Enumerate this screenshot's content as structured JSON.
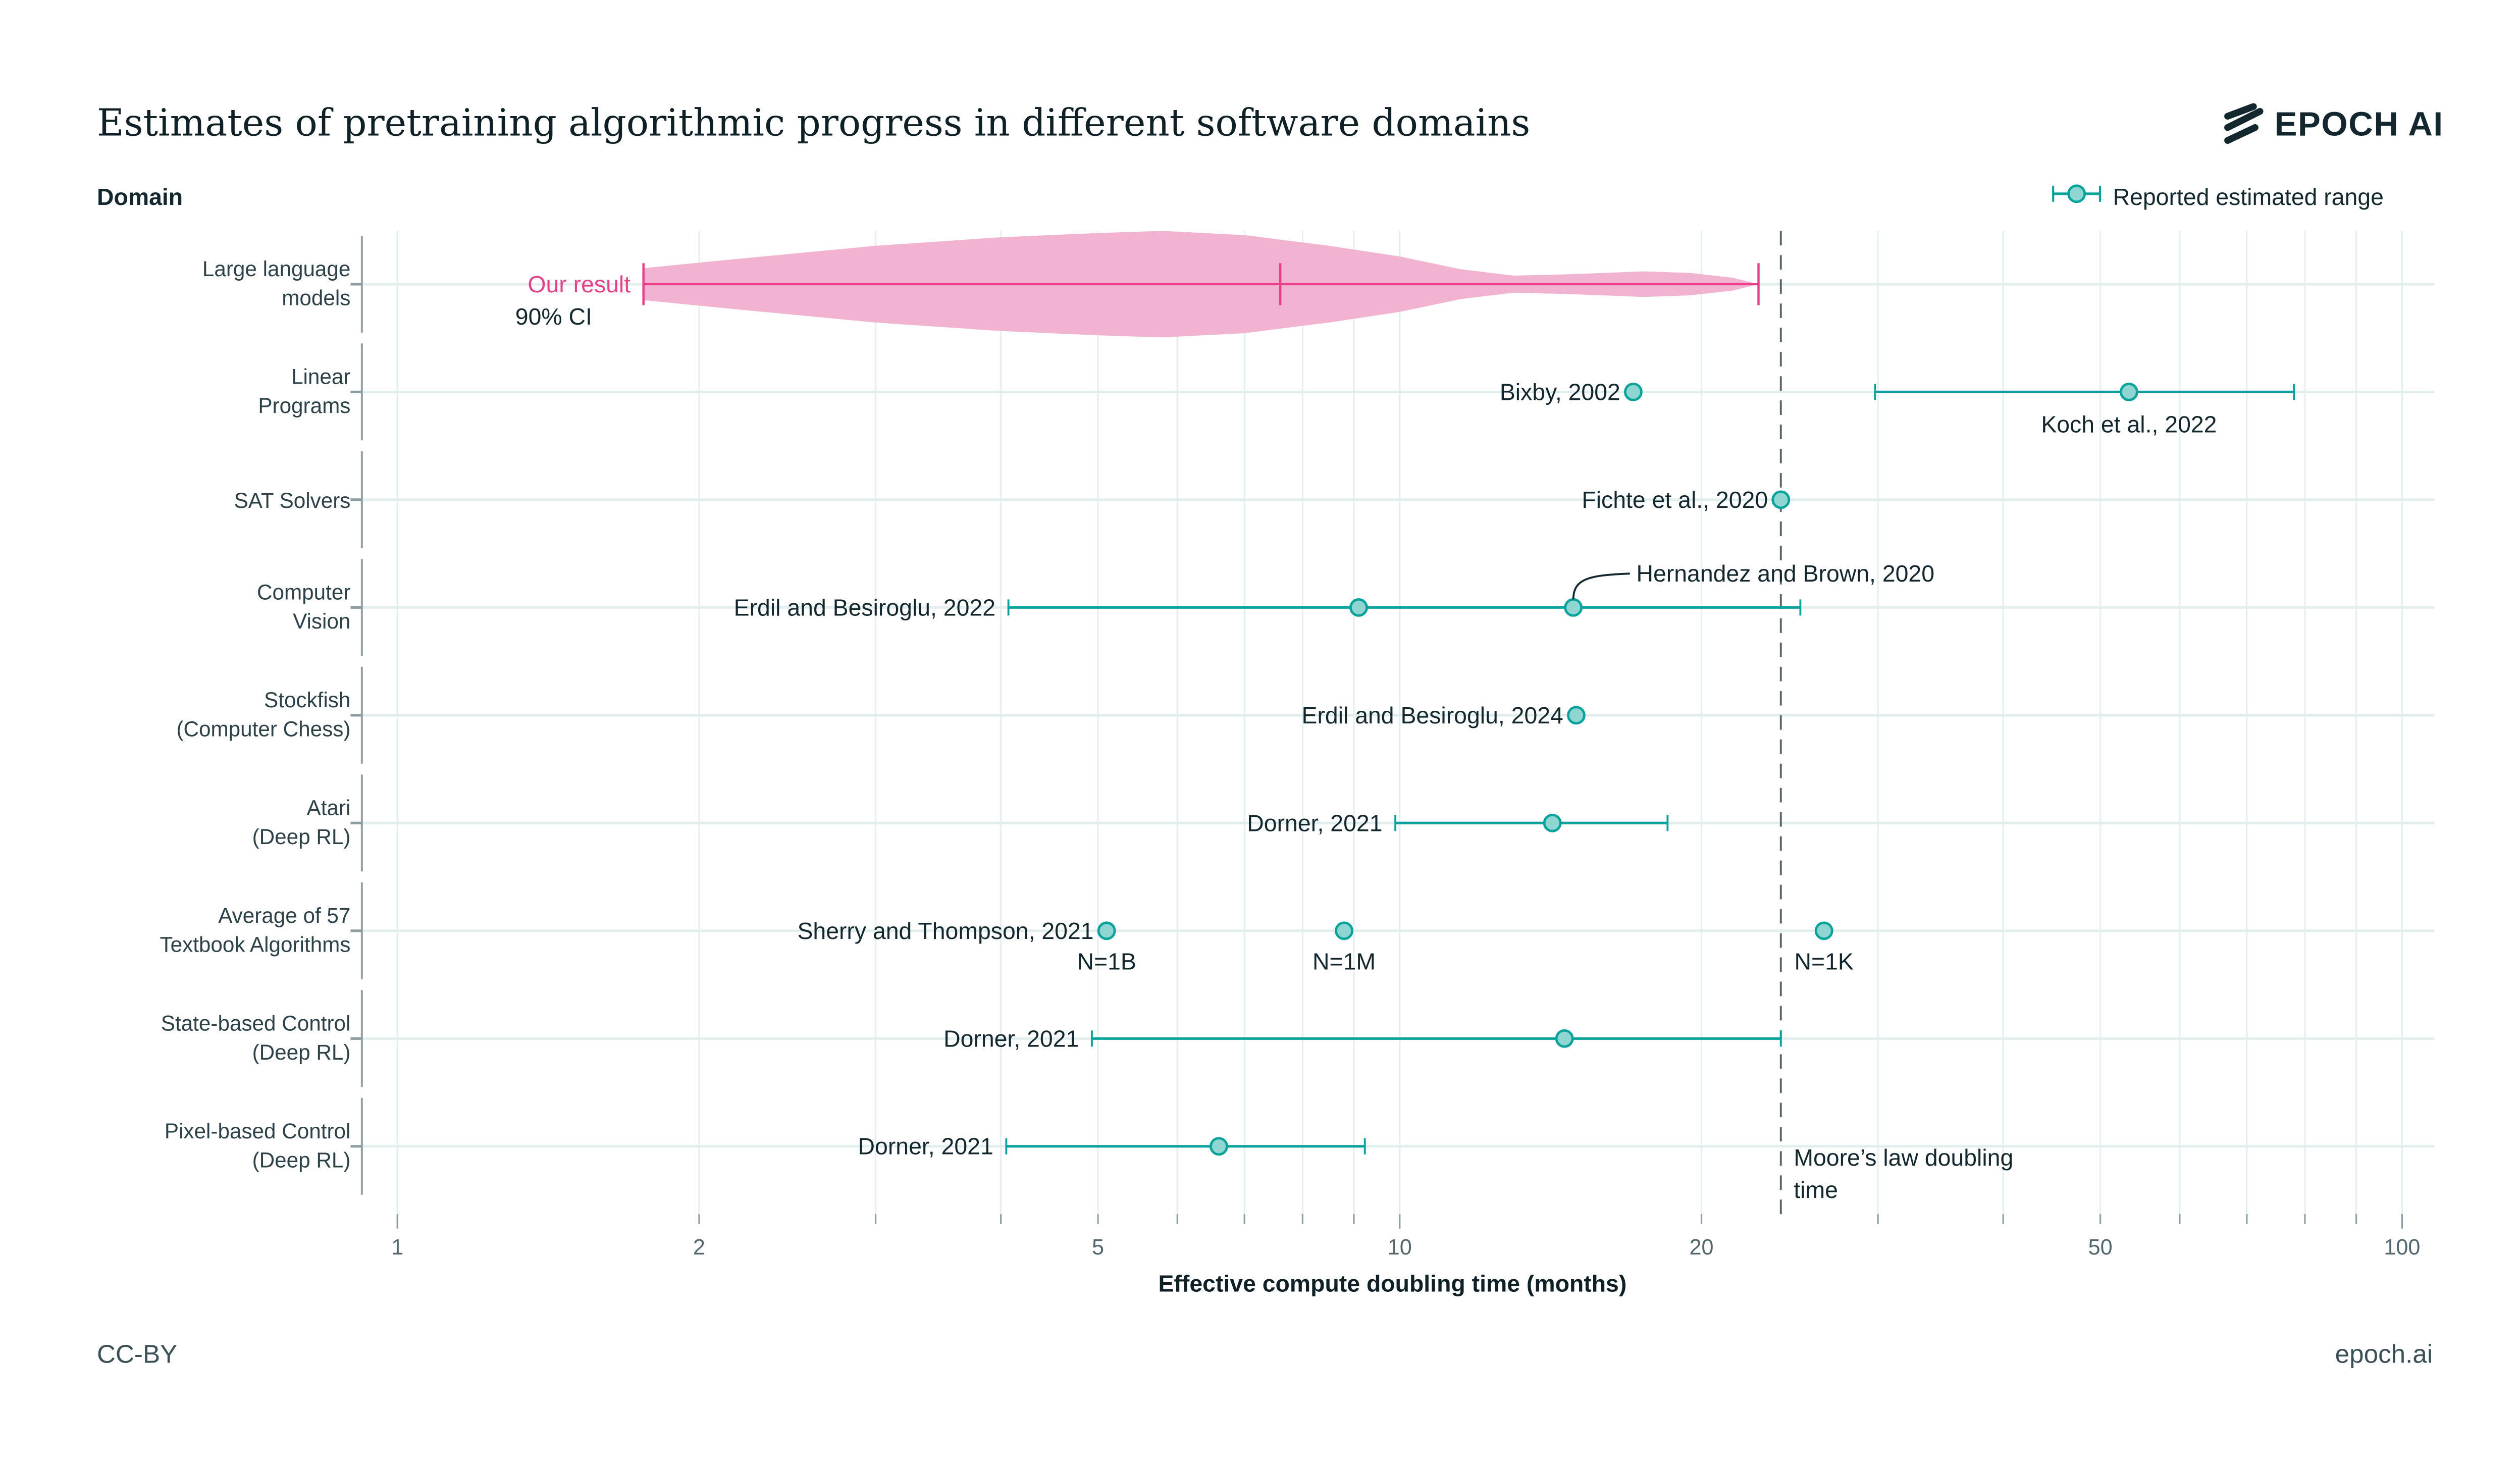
{
  "header": {
    "title": "Estimates of pretraining algorithmic progress in different software domains",
    "brand": "EPOCH AI",
    "y_axis_title": "Domain",
    "legend_label": "Reported estimated range"
  },
  "footer": {
    "license": "CC-BY",
    "site": "epoch.ai"
  },
  "colors": {
    "teal": "#0aa29c",
    "teal_fill": "#8fd6d3",
    "pink": "#e6408a",
    "pink_fill": "#f2b3d0",
    "text": "#13282e",
    "moore_line": "#56656a"
  },
  "chart_data": {
    "type": "scatter",
    "title": "Estimates of pretraining algorithmic progress in different software domains",
    "xlabel": "Effective compute doubling time (months)",
    "ylabel": "Domain",
    "xscale": "log",
    "xlim": [
      1,
      100
    ],
    "xticks": [
      1,
      2,
      5,
      10,
      20,
      50,
      100
    ],
    "xtick_labels": [
      "1",
      "2",
      "5",
      "10",
      "20",
      "50",
      "100"
    ],
    "grid": true,
    "legend": {
      "entries": [
        "Reported estimated range"
      ],
      "placement": "top-right"
    },
    "domains": [
      "Large language models",
      "Linear Programs",
      "SAT Solvers",
      "Computer Vision",
      "Stockfish (Computer Chess)",
      "Atari (Deep RL)",
      "Average of 57 Textbook Algorithms",
      "State-based Control (Deep RL)",
      "Pixel-based Control (Deep RL)"
    ],
    "domain_label_lines": [
      [
        "Large language",
        "models"
      ],
      [
        "Linear",
        "Programs"
      ],
      [
        "SAT Solvers"
      ],
      [
        "Computer",
        "Vision"
      ],
      [
        "Stockfish",
        "(Computer Chess)"
      ],
      [
        "Atari",
        "(Deep RL)"
      ],
      [
        "Average of 57",
        "Textbook Algorithms"
      ],
      [
        "State-based Control",
        "(Deep RL)"
      ],
      [
        "Pixel-based Control",
        "(Deep RL)"
      ]
    ],
    "our_result": {
      "domain": "Large language models",
      "label": "Our result",
      "sublabel": "90% CI",
      "ci_low": 1.76,
      "median": 7.6,
      "ci_high": 22.8,
      "violin_density": [
        [
          1.76,
          0.3
        ],
        [
          2.2,
          0.48
        ],
        [
          3.0,
          0.72
        ],
        [
          4.0,
          0.88
        ],
        [
          5.0,
          0.96
        ],
        [
          5.8,
          1.0
        ],
        [
          7.0,
          0.92
        ],
        [
          8.5,
          0.72
        ],
        [
          10.0,
          0.52
        ],
        [
          11.5,
          0.28
        ],
        [
          13.0,
          0.16
        ],
        [
          15.0,
          0.19
        ],
        [
          17.5,
          0.24
        ],
        [
          19.5,
          0.21
        ],
        [
          21.5,
          0.12
        ],
        [
          22.8,
          0.0
        ]
      ]
    },
    "estimates": [
      {
        "domain": "Linear Programs",
        "label": "Bixby, 2002",
        "value": 17.1,
        "label_pos": "left"
      },
      {
        "domain": "Linear Programs",
        "label": "Koch et al., 2022",
        "value": 53.4,
        "low": 29.8,
        "high": 78,
        "label_pos": "below"
      },
      {
        "domain": "SAT Solvers",
        "label": "Fichte et al., 2020",
        "value": 24.0,
        "label_pos": "left"
      },
      {
        "domain": "Computer Vision",
        "label": "Erdil and Besiroglu, 2022",
        "value": 9.1,
        "low": 4.07,
        "high": 25.1,
        "label_pos": "left"
      },
      {
        "domain": "Computer Vision",
        "label": "Hernandez and Brown, 2020",
        "value": 14.9,
        "label_pos": "callout"
      },
      {
        "domain": "Stockfish (Computer Chess)",
        "label": "Erdil and Besiroglu, 2024",
        "value": 15.0,
        "label_pos": "left"
      },
      {
        "domain": "Atari (Deep RL)",
        "label": "Dorner, 2021",
        "value": 14.2,
        "low": 9.9,
        "high": 18.5,
        "label_pos": "left"
      },
      {
        "domain": "Average of 57 Textbook Algorithms",
        "label": "Sherry and Thompson, 2021",
        "value": 5.1,
        "sublabel": "N=1B",
        "label_pos": "left"
      },
      {
        "domain": "Average of 57 Textbook Algorithms",
        "label": "",
        "value": 8.8,
        "sublabel": "N=1M",
        "label_pos": "none"
      },
      {
        "domain": "Average of 57 Textbook Algorithms",
        "label": "",
        "value": 26.5,
        "sublabel": "N=1K",
        "label_pos": "none"
      },
      {
        "domain": "State-based Control (Deep RL)",
        "label": "Dorner, 2021",
        "value": 14.6,
        "low": 4.93,
        "high": 24.0,
        "label_pos": "left"
      },
      {
        "domain": "Pixel-based Control (Deep RL)",
        "label": "Dorner, 2021",
        "value": 6.6,
        "low": 4.05,
        "high": 9.23,
        "label_pos": "left"
      }
    ],
    "reference_line": {
      "label_lines": [
        "Moore’s law doubling",
        "time"
      ],
      "value": 24
    }
  }
}
